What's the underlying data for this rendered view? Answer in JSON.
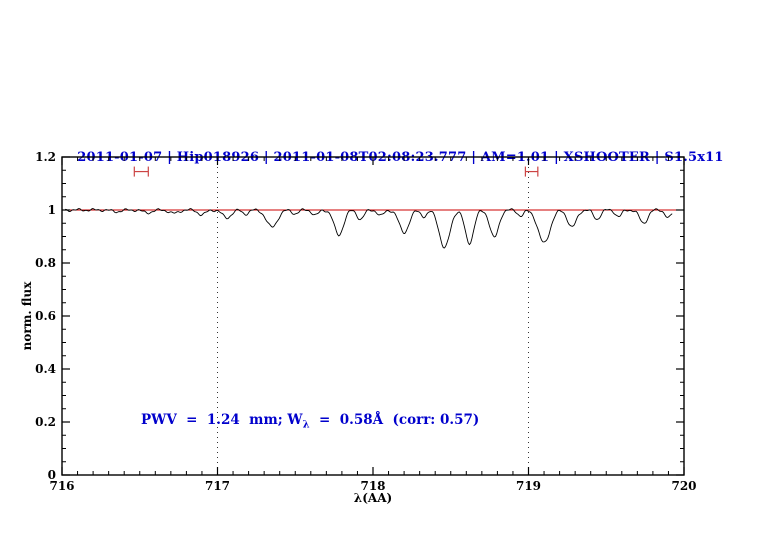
{
  "chart_data": {
    "type": "line",
    "title": "2011-01-07 | Hip018926 | 2011-01-08T02:08:23.777 | AM=1.01 | XSHOOTER | S1.5x11",
    "xlabel": "λ(AA)",
    "ylabel": "norm. flux",
    "xlim": [
      716,
      720
    ],
    "ylim": [
      0,
      1.2
    ],
    "x_ticks": [
      716,
      717,
      718,
      719,
      720
    ],
    "x_tick_labels": [
      "716",
      "717",
      "718",
      "719",
      "720"
    ],
    "y_ticks": [
      0,
      0.2,
      0.4,
      0.6,
      0.8,
      1,
      1.2
    ],
    "y_tick_labels": [
      "0",
      "0.2",
      "0.4",
      "0.6",
      "0.8",
      "1",
      "1.2"
    ],
    "x_minor_step": 0.1,
    "y_minor_step": 0.05,
    "grid": false,
    "continuum_level": 1.0,
    "continuum_color": "#cc0000",
    "spectrum_color": "#000000",
    "vline_color": "#333333",
    "marker_color": "#cc4444",
    "title_color": "#0000cc",
    "annotation_color": "#0000cc",
    "vlines": [
      717,
      719
    ],
    "telluric_markers": [
      {
        "x": 716.51,
        "y": 1.145,
        "half_width": 0.045
      },
      {
        "x": 719.02,
        "y": 1.145,
        "half_width": 0.04
      }
    ],
    "samples": {
      "x_start": 716.02,
      "x_end": 719.93,
      "step": 0.008
    },
    "absorption_lines": [
      [
        716.35,
        0.006,
        0.03
      ],
      [
        716.55,
        0.01,
        0.03
      ],
      [
        716.72,
        0.013,
        0.028
      ],
      [
        716.9,
        0.018,
        0.025
      ],
      [
        717.06,
        0.03,
        0.028
      ],
      [
        717.18,
        0.015,
        0.02
      ],
      [
        717.35,
        0.065,
        0.035
      ],
      [
        717.5,
        0.014,
        0.02
      ],
      [
        717.63,
        0.02,
        0.02
      ],
      [
        717.78,
        0.095,
        0.03
      ],
      [
        717.92,
        0.035,
        0.022
      ],
      [
        718.05,
        0.022,
        0.02
      ],
      [
        718.2,
        0.085,
        0.032
      ],
      [
        718.33,
        0.025,
        0.02
      ],
      [
        718.46,
        0.145,
        0.033
      ],
      [
        718.62,
        0.125,
        0.028
      ],
      [
        718.78,
        0.105,
        0.028
      ],
      [
        718.95,
        0.022,
        0.02
      ],
      [
        719.1,
        0.125,
        0.038
      ],
      [
        719.28,
        0.065,
        0.028
      ],
      [
        719.44,
        0.035,
        0.022
      ],
      [
        719.58,
        0.025,
        0.02
      ],
      [
        719.74,
        0.05,
        0.026
      ],
      [
        719.9,
        0.03,
        0.02
      ]
    ],
    "noise": [
      {
        "amp": 0.0035,
        "freq": 61,
        "phase": 0
      },
      {
        "amp": 0.0025,
        "freq": 149,
        "phase": 2
      }
    ],
    "annotation": {
      "prefix": "PWV  =  1.24  mm; W",
      "sub": "λ",
      "suffix": "  =  0.58Å  (corr: 0.57)",
      "x": 716.52,
      "y": 0.2
    }
  }
}
